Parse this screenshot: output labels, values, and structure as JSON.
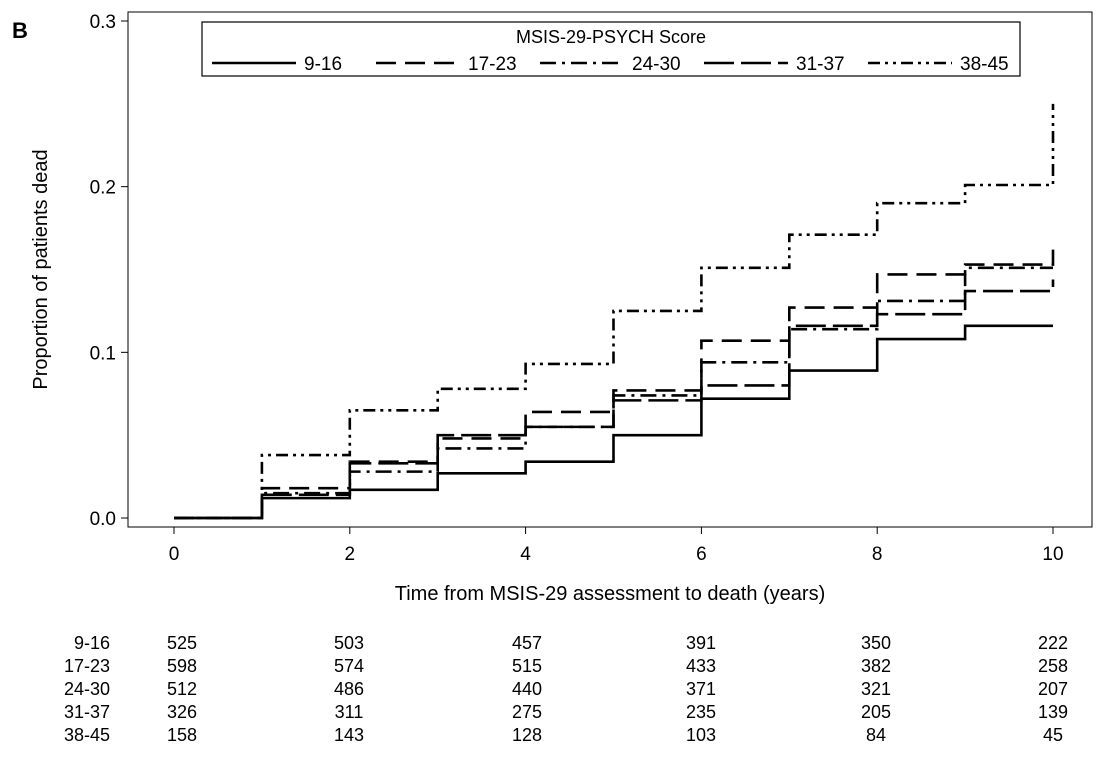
{
  "panel_label": "B",
  "chart_data": {
    "type": "line",
    "step": true,
    "title": "",
    "xlabel": "Time from MSIS-29 assessment to death (years)",
    "ylabel": "Proportion of patients dead",
    "xlim": [
      0,
      10
    ],
    "ylim": [
      0,
      0.3
    ],
    "x_ticks": [
      0,
      2,
      4,
      6,
      8,
      10
    ],
    "y_ticks": [
      0.0,
      0.1,
      0.2,
      0.3
    ],
    "y_tick_labels": [
      "0.0",
      "0.1",
      "0.2",
      "0.3"
    ],
    "grid": false,
    "legend": {
      "title": "MSIS-29-PSYCH Score",
      "position": "top-center"
    },
    "series": [
      {
        "name": "9-16",
        "dash": "solid",
        "x": [
          0,
          1,
          2,
          3,
          4,
          5,
          6,
          7,
          8,
          9,
          10
        ],
        "y": [
          0,
          0.012,
          0.017,
          0.027,
          0.034,
          0.05,
          0.072,
          0.089,
          0.108,
          0.116,
          0.116
        ]
      },
      {
        "name": "17-23",
        "dash": "dash",
        "x": [
          0,
          1,
          2,
          3,
          4,
          5,
          6,
          7,
          8,
          9,
          10
        ],
        "y": [
          0,
          0.018,
          0.034,
          0.048,
          0.064,
          0.077,
          0.107,
          0.127,
          0.147,
          0.153,
          0.162
        ]
      },
      {
        "name": "24-30",
        "dash": "dashdot",
        "x": [
          0,
          1,
          2,
          3,
          4,
          5,
          6,
          7,
          8,
          9,
          10
        ],
        "y": [
          0,
          0.015,
          0.028,
          0.042,
          0.055,
          0.074,
          0.094,
          0.114,
          0.131,
          0.151,
          0.151
        ]
      },
      {
        "name": "31-37",
        "dash": "longdash",
        "x": [
          0,
          1,
          2,
          3,
          4,
          5,
          6,
          7,
          8,
          9,
          10
        ],
        "y": [
          0,
          0.014,
          0.033,
          0.05,
          0.055,
          0.071,
          0.08,
          0.116,
          0.123,
          0.137,
          0.144
        ]
      },
      {
        "name": "38-45",
        "dash": "dashdotdot",
        "x": [
          0,
          1,
          2,
          3,
          4,
          5,
          6,
          7,
          8,
          9,
          10
        ],
        "y": [
          0,
          0.038,
          0.065,
          0.078,
          0.093,
          0.125,
          0.151,
          0.171,
          0.19,
          0.201,
          0.25
        ]
      }
    ],
    "risk_table": {
      "times": [
        0,
        2,
        4,
        6,
        8,
        10
      ],
      "rows": [
        {
          "label": "9-16",
          "values": [
            "525",
            "503",
            "457",
            "391",
            "350",
            "222"
          ]
        },
        {
          "label": "17-23",
          "values": [
            "598",
            "574",
            "515",
            "433",
            "382",
            "258"
          ]
        },
        {
          "label": "24-30",
          "values": [
            "512",
            "486",
            "440",
            "371",
            "321",
            "207"
          ]
        },
        {
          "label": "31-37",
          "values": [
            "326",
            "311",
            "275",
            "235",
            "205",
            "139"
          ]
        },
        {
          "label": "38-45",
          "values": [
            "158",
            "143",
            "128",
            "103",
            "84",
            "45"
          ]
        }
      ]
    }
  }
}
